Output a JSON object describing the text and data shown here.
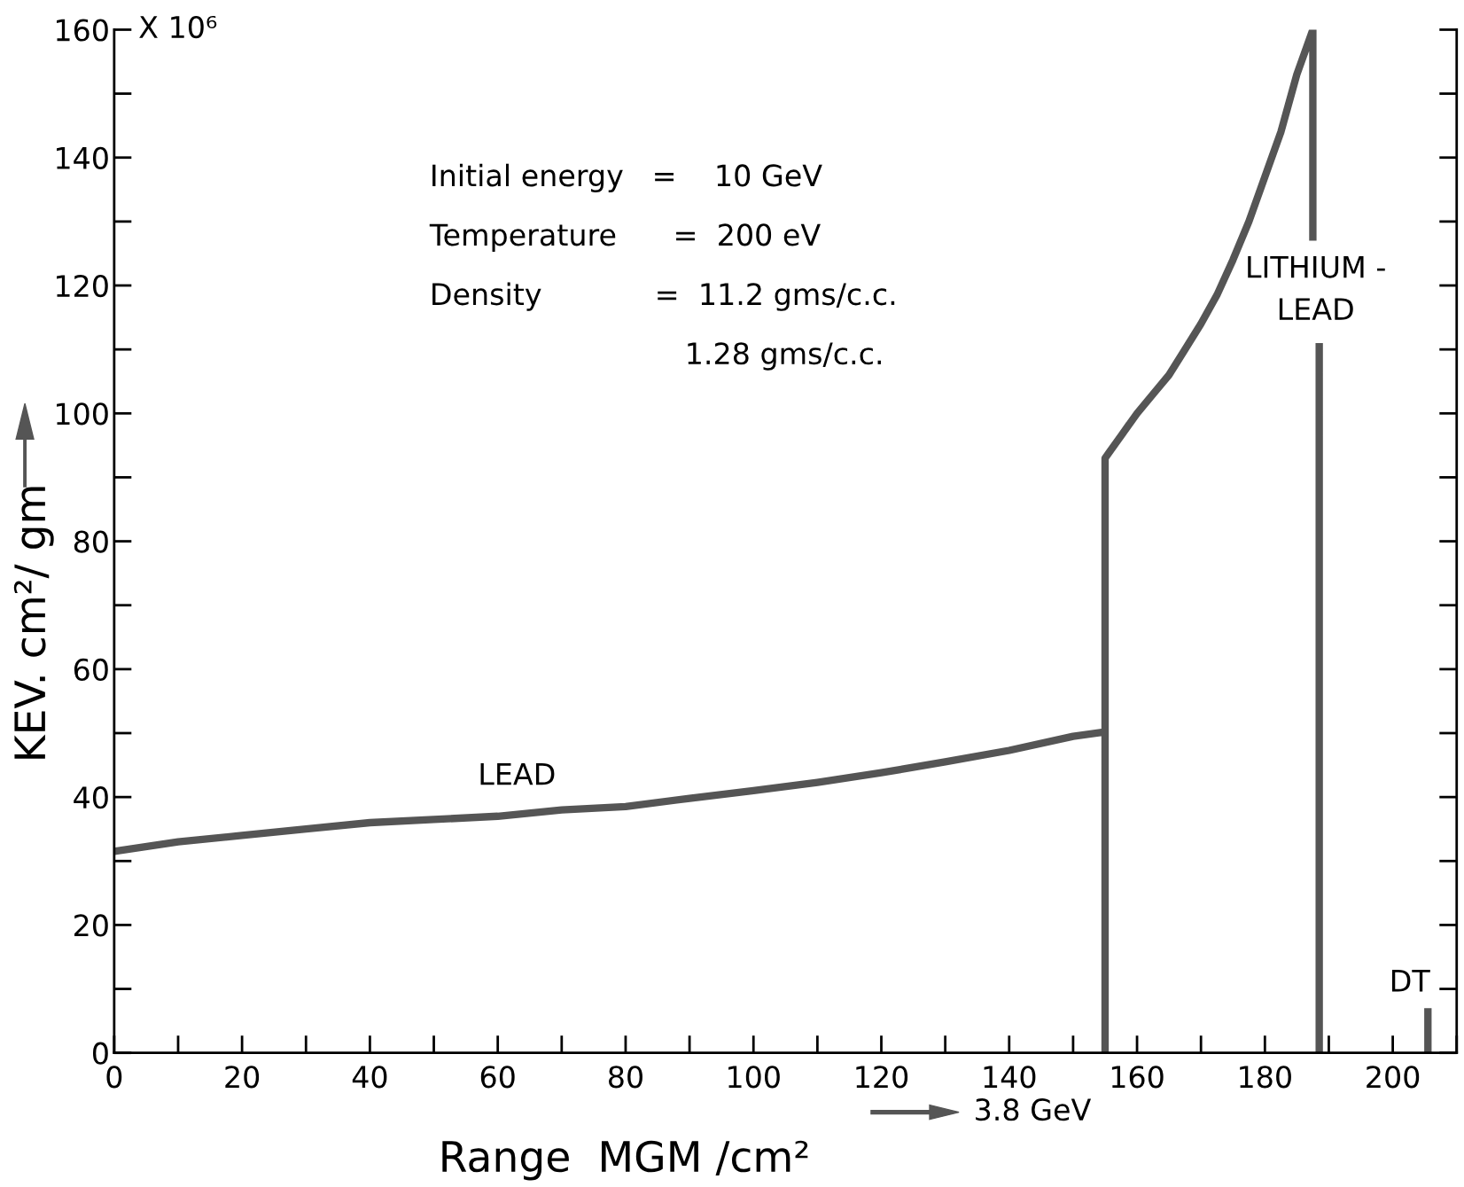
{
  "chart_data": {
    "type": "line",
    "xlabel": "Range  MGM /cm²",
    "ylabel": "KEV. cm²/ gm",
    "series": [
      {
        "color": "#555555",
        "x": [
          0,
          10,
          20,
          30,
          40,
          50,
          60,
          70,
          80,
          90,
          100,
          110,
          120,
          130,
          140,
          150,
          155,
          null,
          155,
          155,
          157.5,
          160,
          162.5,
          165,
          167.5,
          170,
          172.5,
          175,
          177.5,
          180,
          182.5,
          185,
          187.5,
          187.5,
          null,
          188.5,
          188.5,
          null,
          205.5,
          205.5
        ],
        "values": [
          31.5,
          33,
          34,
          35,
          36,
          36.5,
          37,
          38,
          38.5,
          39.8,
          41,
          42.3,
          43.8,
          45.5,
          47.3,
          49.5,
          50.2,
          null,
          0,
          93,
          96.5,
          100,
          103,
          106,
          110,
          114,
          118.5,
          124,
          130,
          137,
          144,
          153,
          160,
          127,
          null,
          111,
          0,
          null,
          0,
          7
        ]
      }
    ],
    "xlim": [
      0,
      210
    ],
    "ylim": [
      0,
      160
    ],
    "xticks": [
      0,
      20,
      40,
      60,
      80,
      100,
      120,
      140,
      160,
      180,
      200
    ],
    "yticks": [
      0,
      20,
      40,
      60,
      80,
      100,
      120,
      140,
      160
    ],
    "grid": false,
    "legend": false,
    "marker": "none",
    "line_style": "solid",
    "annotations": [
      "LEAD",
      "LITHIUM -\nLEAD",
      "DT",
      "X 10⁶",
      "Initial energy   =    10 GeV",
      "Temperature      =  200 eV",
      "Density            =  11.2 gms/c.c.",
      "1.28 gms/c.c.",
      "3.8 GeV"
    ]
  }
}
